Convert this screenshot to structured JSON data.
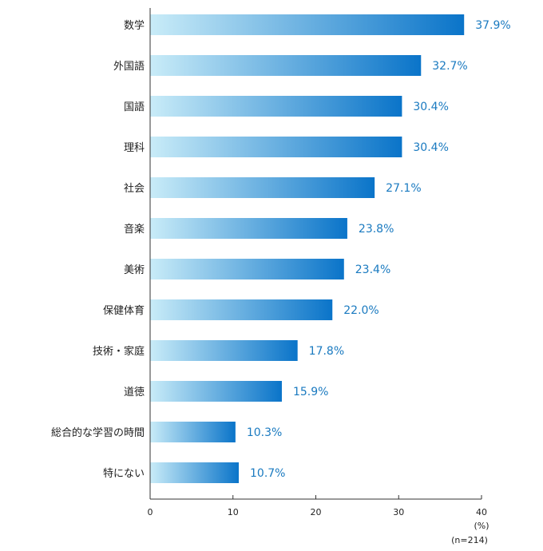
{
  "chart_data": {
    "type": "bar",
    "orientation": "horizontal",
    "categories": [
      "数学",
      "外国語",
      "国語",
      "理科",
      "社会",
      "音楽",
      "美術",
      "保健体育",
      "技術・家庭",
      "道徳",
      "総合的な学習の時間",
      "特にない"
    ],
    "values": [
      37.9,
      32.7,
      30.4,
      30.4,
      27.1,
      23.8,
      23.4,
      22.0,
      17.8,
      15.9,
      10.3,
      10.7
    ],
    "value_labels": [
      "37.9%",
      "32.7%",
      "30.4%",
      "30.4%",
      "27.1%",
      "23.8%",
      "23.4%",
      "22.0%",
      "17.8%",
      "15.9%",
      "10.3%",
      "10.7%"
    ],
    "xlim": [
      0,
      40
    ],
    "xticks": [
      "0",
      "10",
      "20",
      "30",
      "40"
    ],
    "unit_label": "(%)",
    "sample_label": "(n=214)",
    "grid": false,
    "colors": {
      "bar_start": "#c9ecf8",
      "bar_end": "#0a74c9",
      "value_text": "#1a7ac0",
      "axis": "#333333"
    }
  }
}
